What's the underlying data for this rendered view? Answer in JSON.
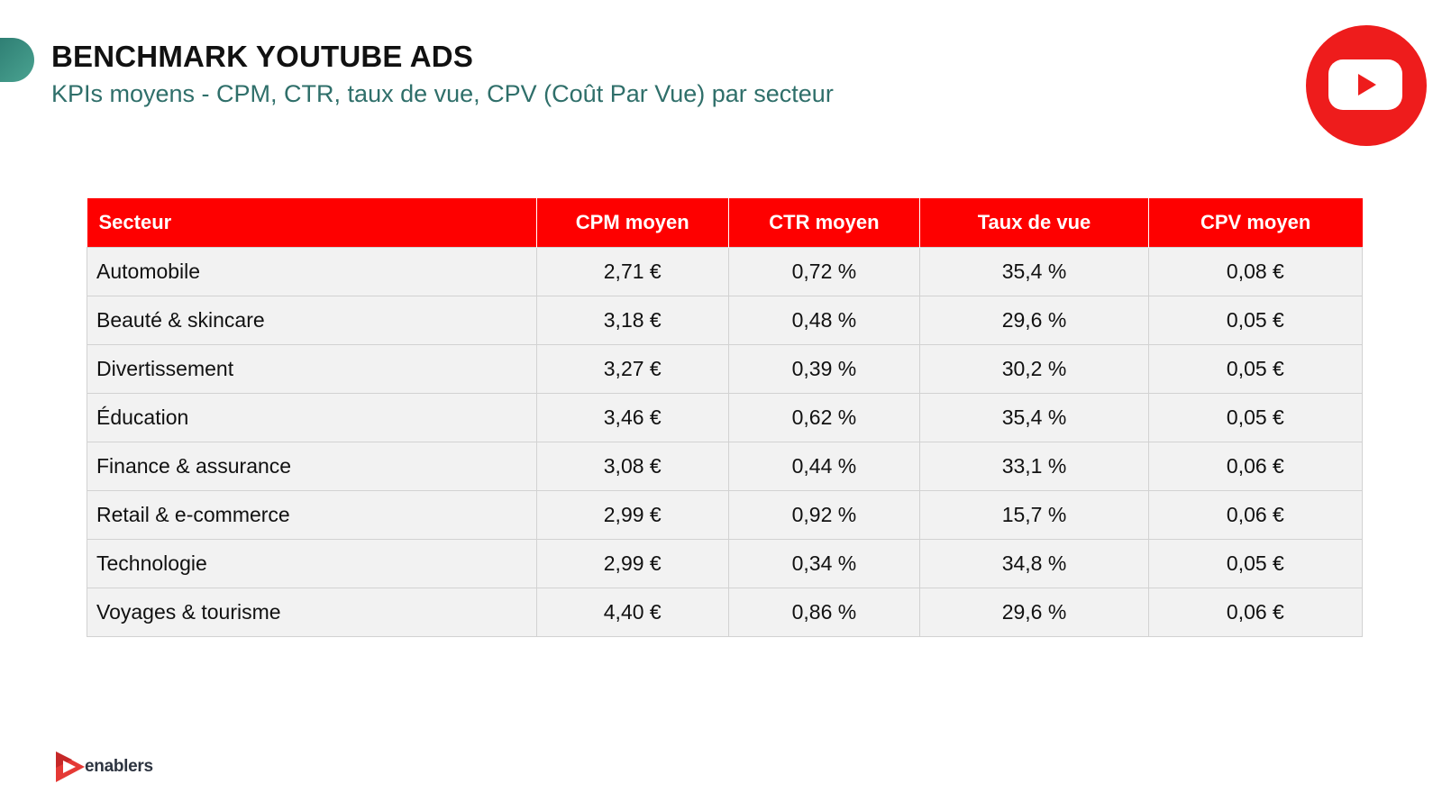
{
  "header": {
    "title": "BENCHMARK YOUTUBE ADS",
    "subtitle": "KPIs moyens - CPM, CTR, taux de vue, CPV (Coût Par Vue) par secteur"
  },
  "colors": {
    "accent_red": "#fe0000",
    "accent_teal": "#2f6f6a",
    "youtube_red": "#ee1c1c"
  },
  "icons": {
    "logo": "youtube-logo-icon",
    "brand": "enablers-play-icon"
  },
  "table": {
    "headers": [
      "Secteur",
      "CPM moyen",
      "CTR moyen",
      "Taux de vue",
      "CPV moyen"
    ],
    "rows": [
      [
        "Automobile",
        "2,71 €",
        "0,72 %",
        "35,4 %",
        "0,08 €"
      ],
      [
        "Beauté & skincare",
        "3,18 €",
        "0,48 %",
        "29,6 %",
        "0,05 €"
      ],
      [
        "Divertissement",
        "3,27 €",
        "0,39 %",
        "30,2 %",
        "0,05 €"
      ],
      [
        "Éducation",
        "3,46 €",
        "0,62 %",
        "35,4 %",
        "0,05 €"
      ],
      [
        "Finance & assurance",
        "3,08 €",
        "0,44 %",
        "33,1 %",
        "0,06 €"
      ],
      [
        "Retail & e-commerce",
        "2,99 €",
        "0,92 %",
        "15,7 %",
        "0,06 €"
      ],
      [
        "Technologie",
        "2,99 €",
        "0,34 %",
        "34,8 %",
        "0,05 €"
      ],
      [
        "Voyages & tourisme",
        "4,40 €",
        "0,86 %",
        "29,6 %",
        "0,06 €"
      ]
    ]
  },
  "footer": {
    "brand_name": "enablers"
  }
}
